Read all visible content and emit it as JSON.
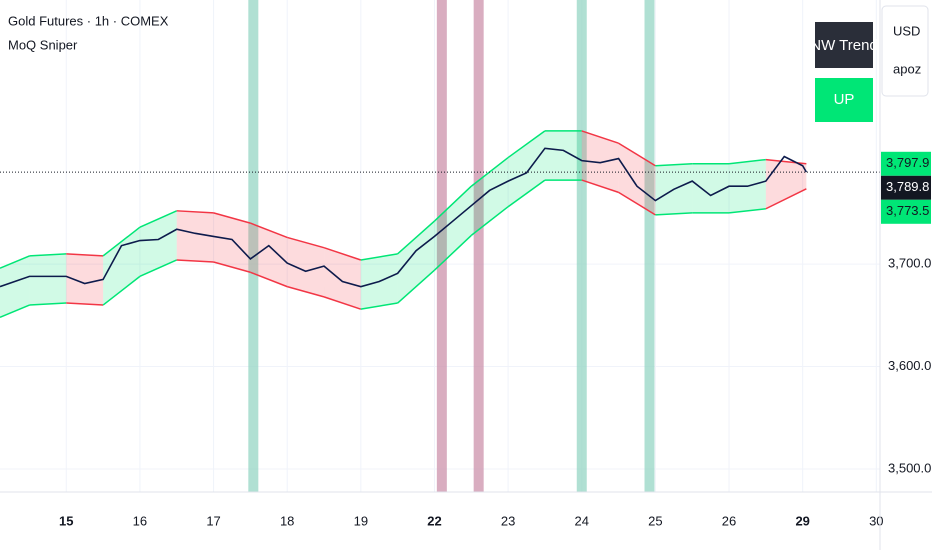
{
  "chart_data": {
    "type": "line",
    "title": "Gold Futures · 1h · COMEX",
    "subtitle": "MoQ Sniper",
    "currency": "USD",
    "axis_note": "apoz",
    "trend_table": {
      "header": "NW Trend",
      "value": "UP",
      "value_color": "#00e676"
    },
    "x": [
      -0.9,
      -0.5,
      0,
      0.25,
      0.5,
      0.75,
      1,
      1.25,
      1.5,
      1.75,
      2,
      2.25,
      2.5,
      2.75,
      3,
      3.25,
      3.5,
      3.75,
      4,
      4.25,
      4.5,
      4.75,
      5,
      5.25,
      5.5,
      5.75,
      6,
      6.25,
      6.5,
      6.75,
      7,
      7.25,
      7.5,
      7.75,
      8,
      8.25,
      8.5,
      8.75,
      9,
      9.25,
      9.5,
      9.75,
      10,
      10.05
    ],
    "values": [
      3678,
      3688,
      3688,
      3681,
      3685,
      3718,
      3723,
      3724,
      3734,
      3730,
      3727,
      3724,
      3705,
      3718,
      3701,
      3693,
      3698,
      3683,
      3678,
      3683,
      3691,
      3713,
      3727,
      3742,
      3757,
      3772,
      3781,
      3789,
      3813,
      3811,
      3801,
      3799,
      3803,
      3776,
      3762,
      3773,
      3781,
      3767,
      3776,
      3776,
      3781,
      3805,
      3796,
      3789.8
    ],
    "color": "#0d1b4c",
    "band": {
      "x": [
        -0.9,
        -0.5,
        0,
        0.5,
        1,
        1.5,
        2,
        2.5,
        3,
        3.5,
        4,
        4.5,
        5,
        5.5,
        6,
        6.5,
        7,
        7.5,
        8,
        8.5,
        9,
        9.5,
        10.05
      ],
      "upper": [
        3696,
        3708,
        3710,
        3708,
        3736,
        3752,
        3750,
        3740,
        3726,
        3716,
        3704,
        3710,
        3742,
        3776,
        3804,
        3830,
        3830,
        3818,
        3796,
        3798,
        3798,
        3802,
        3797.9
      ],
      "lower": [
        3648,
        3660,
        3662,
        3660,
        3688,
        3704,
        3702,
        3692,
        3678,
        3668,
        3656,
        3662,
        3694,
        3728,
        3756,
        3782,
        3782,
        3770,
        3748,
        3750,
        3750,
        3754,
        3773.5
      ],
      "up_color": "#00e676",
      "down_color": "#f23645"
    },
    "signals": [
      {
        "x": 2.54,
        "color": "#8fd3c1"
      },
      {
        "x": 5.1,
        "color": "#c98aa5"
      },
      {
        "x": 5.6,
        "color": "#c98aa5"
      },
      {
        "x": 7.0,
        "color": "#8fd3c1"
      },
      {
        "x": 7.92,
        "color": "#8fd3c1"
      }
    ],
    "xlim": [
      -0.9,
      11.05
    ],
    "xticks": [
      {
        "value": 0,
        "label": "15",
        "bold": true
      },
      {
        "value": 1,
        "label": "16"
      },
      {
        "value": 2,
        "label": "17"
      },
      {
        "value": 3,
        "label": "18"
      },
      {
        "value": 4,
        "label": "19"
      },
      {
        "value": 5,
        "label": "22",
        "bold": true
      },
      {
        "value": 6,
        "label": "23"
      },
      {
        "value": 7,
        "label": "24"
      },
      {
        "value": 8,
        "label": "25"
      },
      {
        "value": 9,
        "label": "26"
      },
      {
        "value": 10,
        "label": "29",
        "bold": true
      },
      {
        "value": 11,
        "label": "30"
      }
    ],
    "ylim": [
      3477.5,
      3957.8
    ],
    "yticks": [
      {
        "value": 3500,
        "label": "3,500.0"
      },
      {
        "value": 3600,
        "label": "3,600.0"
      },
      {
        "value": 3700,
        "label": "3,700.0"
      }
    ],
    "grid": true,
    "price_labels": [
      {
        "value": 3797.9,
        "label": "3,797.9",
        "color": "#00e676"
      },
      {
        "value": 3789.8,
        "label": "3,789.8",
        "color": "#131722"
      },
      {
        "value": 3773.5,
        "label": "3,773.5",
        "color": "#00e676"
      }
    ]
  }
}
